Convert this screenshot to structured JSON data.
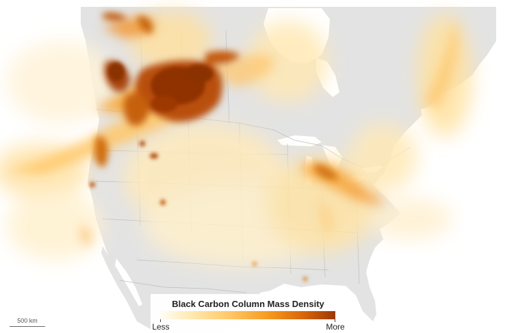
{
  "legend": {
    "title": "Black Carbon Column Mass Density",
    "min_label": "Less",
    "max_label": "More",
    "colors": [
      "#fffdf6",
      "#ffe9b0",
      "#ffc766",
      "#f59a1f",
      "#d8650a",
      "#9c3805"
    ]
  },
  "scale_bar": {
    "label": "500 km"
  },
  "colors": {
    "land": "#e3e3e3",
    "water": "#ffffff",
    "border": "#bdbdbd",
    "smoke_light": "#ffd98a",
    "smoke_dark": "#9c3805"
  }
}
